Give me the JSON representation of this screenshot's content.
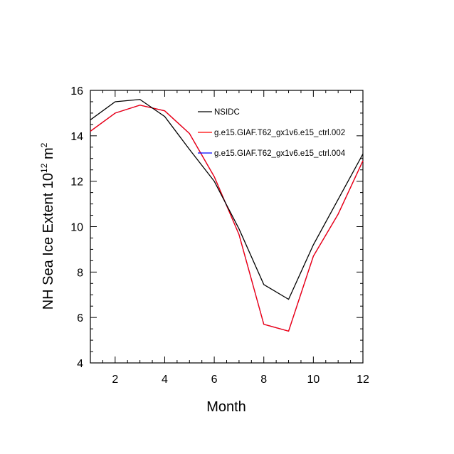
{
  "chart_data": {
    "type": "line",
    "xlabel": "Month",
    "ylabel_main": "NH Sea Ice Extent 10",
    "ylabel_sup": "12",
    "ylabel_unit": " m",
    "ylabel_unit_sup": "2",
    "xlim": [
      1,
      12
    ],
    "ylim": [
      4,
      16
    ],
    "x_ticks": [
      2,
      4,
      6,
      8,
      10,
      12
    ],
    "y_ticks": [
      4,
      6,
      8,
      10,
      12,
      14,
      16
    ],
    "x": [
      1,
      2,
      3,
      4,
      5,
      6,
      7,
      8,
      9,
      10,
      11,
      12
    ],
    "legend_position": "top-right",
    "series": [
      {
        "name": "NSIDC",
        "color": "#000000",
        "values": [
          14.7,
          15.5,
          15.6,
          14.85,
          13.4,
          12.0,
          9.9,
          7.45,
          6.8,
          9.2,
          11.2,
          13.2
        ]
      },
      {
        "name": "g.e15.GIAF.T62_gx1v6.e15_ctrl.002",
        "color": "#ff0000",
        "values": [
          14.2,
          15.0,
          15.35,
          15.1,
          14.1,
          12.2,
          9.65,
          5.7,
          5.4,
          8.7,
          10.55,
          12.9
        ]
      },
      {
        "name": "g.e15.GIAF.T62_gx1v6.e15_ctrl.004",
        "color": "#0000ff",
        "values": [
          14.2,
          15.0,
          15.35,
          15.1,
          14.1,
          12.2,
          9.65,
          5.7,
          5.4,
          8.7,
          10.55,
          12.9
        ]
      }
    ]
  }
}
